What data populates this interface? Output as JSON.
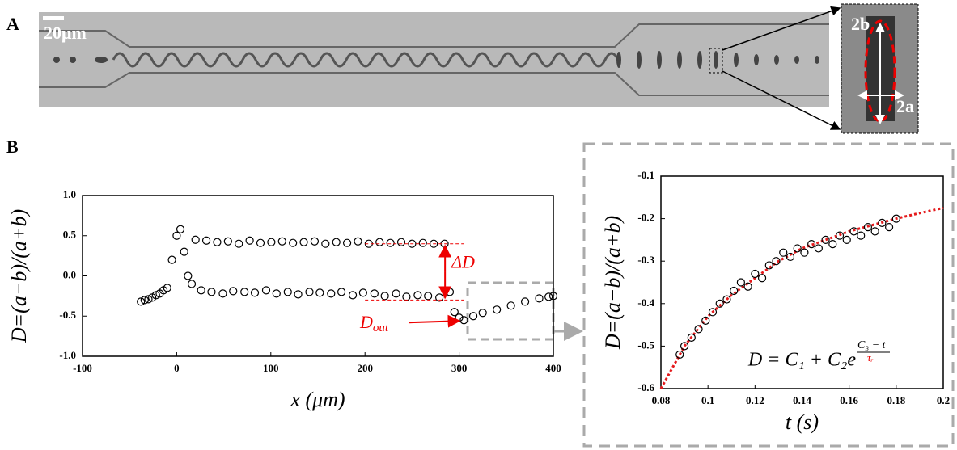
{
  "image_panel": {
    "label": "A",
    "scale_bar": "20μm",
    "inset_labels": [
      "2b",
      "2a"
    ]
  },
  "panel_label": "B",
  "chart_data": [
    {
      "type": "scatter",
      "ylabel": "D=(a−b)/(a+b)",
      "xlabel": "x (μm)",
      "xlim": [
        -100,
        400
      ],
      "xticks": [
        -100,
        0,
        100,
        200,
        300,
        400
      ],
      "ylim": [
        -1,
        1
      ],
      "yticks": [
        {
          "value": -1,
          "label": "-1.0"
        },
        {
          "value": -0.5,
          "label": "-0.5"
        },
        {
          "value": 0,
          "label": "0.0"
        },
        {
          "value": 0.5,
          "label": "0.5"
        },
        {
          "value": 1,
          "label": "1.0"
        }
      ],
      "color": "#000000",
      "points": {
        "x": [
          -38,
          -34,
          -30,
          -26,
          -22,
          -18,
          -14,
          -10,
          -5,
          0,
          4,
          8,
          12,
          16,
          20,
          26,
          31.5,
          37,
          43,
          49,
          54.5,
          60,
          66,
          72,
          77.5,
          83,
          89,
          95,
          100.5,
          106,
          112,
          118,
          123.5,
          129,
          135,
          141,
          146.5,
          152,
          158,
          164,
          169.5,
          175,
          181,
          187,
          192.5,
          198,
          204,
          210,
          215.5,
          221,
          227,
          233,
          238.5,
          244,
          250,
          256,
          261.5,
          267,
          273,
          279,
          284.5,
          290,
          295,
          300,
          305,
          315,
          325,
          340,
          355,
          370,
          385,
          395,
          400
        ],
        "y": [
          -0.32,
          -0.3,
          -0.29,
          -0.27,
          -0.24,
          -0.22,
          -0.18,
          -0.15,
          0.2,
          0.5,
          0.58,
          0.3,
          0.0,
          -0.1,
          0.45,
          -0.18,
          0.44,
          -0.2,
          0.42,
          -0.22,
          0.43,
          -0.19,
          0.4,
          -0.2,
          0.44,
          -0.21,
          0.41,
          -0.18,
          0.42,
          -0.22,
          0.43,
          -0.2,
          0.41,
          -0.23,
          0.42,
          -0.2,
          0.43,
          -0.21,
          0.4,
          -0.22,
          0.42,
          -0.2,
          0.41,
          -0.24,
          0.43,
          -0.21,
          0.4,
          -0.22,
          0.42,
          -0.25,
          0.41,
          -0.22,
          0.42,
          -0.26,
          0.4,
          -0.24,
          0.41,
          -0.25,
          0.4,
          -0.27,
          0.4,
          -0.2,
          -0.45,
          -0.52,
          -0.55,
          -0.5,
          -0.46,
          -0.42,
          -0.37,
          -0.32,
          -0.28,
          -0.26,
          -0.25
        ]
      },
      "delta_d_levels": [
        -0.3,
        0.4
      ],
      "annotations": {
        "delta": "ΔD",
        "dout_base": "D",
        "dout_sub": "out"
      }
    },
    {
      "type": "scatter",
      "ylabel": "D=(a−b)/(a+b)",
      "xlabel": "t (s)",
      "xlim": [
        0.08,
        0.2
      ],
      "xticks": [
        0.08,
        0.1,
        0.12,
        0.14,
        0.16,
        0.18,
        0.2
      ],
      "ylim": [
        -0.6,
        -0.1
      ],
      "yticks": [
        -0.6,
        -0.5,
        -0.4,
        -0.3,
        -0.2,
        -0.1
      ],
      "color": "#000000",
      "points": {
        "x": [
          0.088,
          0.09,
          0.093,
          0.096,
          0.099,
          0.102,
          0.105,
          0.108,
          0.111,
          0.114,
          0.117,
          0.12,
          0.123,
          0.126,
          0.129,
          0.132,
          0.135,
          0.138,
          0.141,
          0.144,
          0.147,
          0.15,
          0.153,
          0.156,
          0.159,
          0.162,
          0.165,
          0.168,
          0.171,
          0.174,
          0.177,
          0.18
        ],
        "y": [
          -0.52,
          -0.5,
          -0.48,
          -0.46,
          -0.44,
          -0.42,
          -0.4,
          -0.39,
          -0.37,
          -0.35,
          -0.36,
          -0.33,
          -0.34,
          -0.31,
          -0.3,
          -0.28,
          -0.29,
          -0.27,
          -0.28,
          -0.26,
          -0.27,
          -0.25,
          -0.26,
          -0.24,
          -0.25,
          -0.23,
          -0.24,
          -0.22,
          -0.23,
          -0.21,
          -0.22,
          -0.2
        ]
      },
      "fit": {
        "color": "#e41a1c",
        "x": [
          0.08,
          0.09,
          0.1,
          0.11,
          0.12,
          0.13,
          0.14,
          0.15,
          0.16,
          0.17,
          0.18,
          0.19,
          0.2
        ],
        "values": [
          -0.6,
          -0.5,
          -0.43,
          -0.38,
          -0.34,
          -0.3,
          -0.27,
          -0.25,
          -0.23,
          -0.215,
          -0.2,
          -0.187,
          -0.175
        ]
      },
      "formula": {
        "main": "D = C₁ + C₂e",
        "exp_num": "C₃ − t",
        "exp_den": "τᵣ"
      }
    }
  ]
}
